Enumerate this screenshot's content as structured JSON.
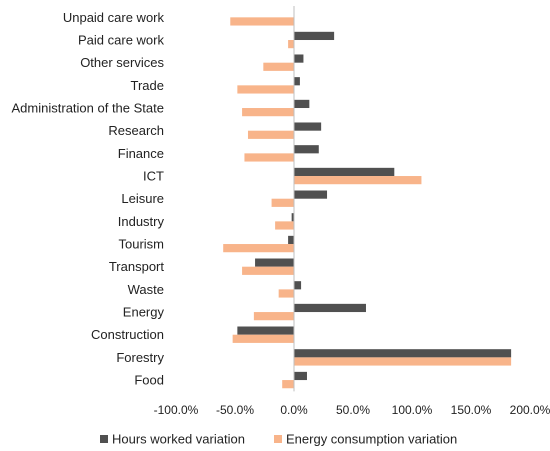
{
  "chart_data": {
    "type": "bar",
    "orientation": "horizontal",
    "categories": [
      "Unpaid care work",
      "Paid care work",
      "Other services",
      "Trade",
      "Administration of the State",
      "Research",
      "Finance",
      "ICT",
      "Leisure",
      "Industry",
      "Tourism",
      "Transport",
      "Waste",
      "Energy",
      "Construction",
      "Forestry",
      "Food"
    ],
    "series": [
      {
        "name": "Hours worked variation",
        "color": "#505050",
        "values": [
          0,
          34,
          8,
          5,
          13,
          23,
          21,
          85,
          28,
          -2,
          -5,
          -33,
          6,
          61,
          -48,
          184,
          11
        ]
      },
      {
        "name": "Energy consumption variation",
        "color": "#F8B48A",
        "values": [
          -54,
          -5,
          -26,
          -48,
          -44,
          -39,
          -42,
          108,
          -19,
          -16,
          -60,
          -44,
          -13,
          -34,
          -52,
          184,
          -10
        ]
      }
    ],
    "xlim": [
      -100,
      200
    ],
    "xticks": [
      -100,
      -50,
      0,
      50,
      100,
      150,
      200
    ],
    "xtick_labels": [
      "-100.0%",
      "-50.0%",
      "0.0%",
      "50.0%",
      "100.0%",
      "150.0%",
      "200.0%"
    ],
    "legend_position": "bottom",
    "grid": false
  }
}
